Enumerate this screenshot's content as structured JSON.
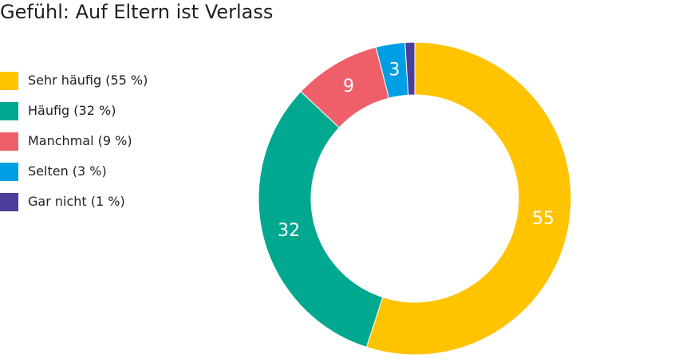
{
  "chart_data": {
    "type": "pie",
    "title": "Gefühl: Auf Eltern ist Verlass",
    "legend_position": "left",
    "series": [
      {
        "name": "Sehr häufig",
        "legend_label": "Sehr häufig (55 %)",
        "value": 55,
        "label": "55",
        "color": "#FFC300"
      },
      {
        "name": "Häufig",
        "legend_label": "Häufig (32 %)",
        "value": 32,
        "label": "32",
        "color": "#00A88F"
      },
      {
        "name": "Manchmal",
        "legend_label": "Manchmal (9 %)",
        "value": 9,
        "label": "9",
        "color": "#EE5F6A"
      },
      {
        "name": "Selten",
        "legend_label": "Selten (3 %)",
        "value": 3,
        "label": "3",
        "color": "#009EE2"
      },
      {
        "name": "Gar nicht",
        "legend_label": "Gar nicht (1 %)",
        "value": 1,
        "label": "",
        "color": "#4B3E9A"
      }
    ]
  }
}
